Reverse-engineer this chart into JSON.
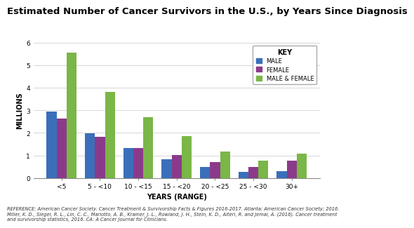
{
  "title": "Estimated Number of Cancer Survivors in the U.S., by Years Since Diagnosis",
  "xlabel": "YEARS (RANGE)",
  "ylabel": "MILLIONS",
  "categories": [
    "<5",
    "5 - <10",
    "10 - <15",
    "15 - <20",
    "20 - <25",
    "25 - <30",
    "30+"
  ],
  "male": [
    2.95,
    1.97,
    1.32,
    0.84,
    0.49,
    0.28,
    0.3
  ],
  "female": [
    2.63,
    1.83,
    1.34,
    1.02,
    0.7,
    0.49,
    0.77
  ],
  "both": [
    5.55,
    3.8,
    2.7,
    1.85,
    1.19,
    0.78,
    1.07
  ],
  "male_color": "#3b6fba",
  "female_color": "#8b3a8b",
  "both_color": "#7ab648",
  "ylim": [
    0,
    6
  ],
  "yticks": [
    0,
    1,
    2,
    3,
    4,
    5,
    6
  ],
  "legend_title": "KEY",
  "legend_labels": [
    "MALE",
    "FEMALE",
    "MALE & FEMALE"
  ],
  "reference": "REFERENCE: American Cancer Society. Cancer Treatment & Survivorship Facts & Figures 2016-2017. Atlanta: American Cancer Society; 2016.\nMiller, K. D., Siegel, R. L., Lin, C. C., Mariotto, A. B., Kramer, J. L., Rowland, J. H., Stein, K. D., Alteri, R. and Jemal, A. (2016). Cancer treatment\nand survivorship statistics, 2016. CA: A Cancer Journal for Clinicians.",
  "title_fontsize": 9.5,
  "axis_label_fontsize": 7,
  "tick_fontsize": 6.5,
  "ref_fontsize": 4.8,
  "background_color": "#ffffff",
  "bar_width": 0.26
}
